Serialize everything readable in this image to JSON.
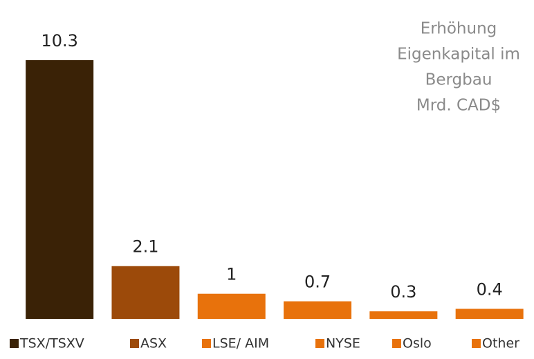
{
  "chart_data": {
    "type": "bar",
    "title_lines": [
      "Erhöhung",
      "Eigenkapital im",
      "Bergbau",
      "Mrd. CAD$"
    ],
    "categories": [
      "TSX/TSXV",
      "ASX",
      "LSE/ AIM",
      "NYSE",
      "Oslo",
      "Other"
    ],
    "values": [
      10.3,
      2.1,
      1,
      0.7,
      0.3,
      0.4
    ],
    "colors": [
      "#3a2206",
      "#9c4a0a",
      "#e8720c",
      "#e8720c",
      "#e8720c",
      "#e8720c"
    ],
    "legend": "bottom"
  }
}
